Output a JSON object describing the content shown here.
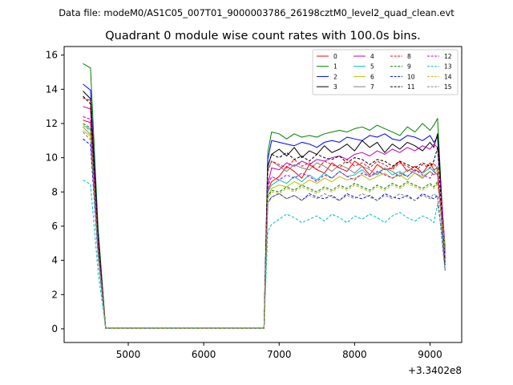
{
  "figure": {
    "suptitle": "Data file: modeM0/AS1C05_007T01_9000003786_26198cztM0_level2_quad_clean.evt"
  },
  "chart_data": {
    "type": "line",
    "title": "Quadrant 0 module wise count rates with 100.0s bins.",
    "xlabel": "",
    "ylabel": "",
    "x_offset_label": "+3.3402e8",
    "xlim": [
      4150,
      9420
    ],
    "ylim": [
      -0.8,
      16.5
    ],
    "x_ticks": [
      5000,
      6000,
      7000,
      8000,
      9000
    ],
    "y_ticks": [
      0,
      2,
      4,
      6,
      8,
      10,
      12,
      14,
      16
    ],
    "grid": false,
    "legend_placement": "top-right",
    "legend_columns": 4,
    "x": [
      4400,
      4500,
      4600,
      4700,
      4800,
      4900,
      5000,
      5100,
      5200,
      5300,
      5400,
      5500,
      5600,
      5700,
      5800,
      5900,
      6000,
      6100,
      6200,
      6300,
      6400,
      6500,
      6600,
      6700,
      6800,
      6850,
      6900,
      7000,
      7100,
      7200,
      7300,
      7400,
      7500,
      7600,
      7700,
      7800,
      7900,
      8000,
      8100,
      8200,
      8300,
      8400,
      8500,
      8600,
      8700,
      8800,
      8900,
      9000,
      9050,
      9100,
      9200
    ],
    "series": [
      {
        "name": "0",
        "color": "#ff0000",
        "dash": "solid",
        "start": 12.2,
        "valley": 0.03,
        "plateau": [
          8.1,
          8.6,
          8.9,
          9.5,
          9.2,
          8.8,
          9.6,
          9.3,
          9.1,
          9.7,
          9.4,
          9.2,
          9.8,
          9.5,
          9.0,
          9.6,
          9.3,
          9.4,
          9.8,
          9.2,
          9.5,
          9.1,
          9.7,
          9.3,
          9.4
        ]
      },
      {
        "name": "1",
        "color": "#008000",
        "dash": "solid",
        "start": 15.5,
        "valley": 0.05,
        "plateau": [
          10.3,
          11.5,
          11.4,
          11.1,
          11.4,
          11.2,
          11.3,
          11.2,
          11.4,
          11.5,
          11.6,
          11.5,
          11.7,
          11.8,
          11.6,
          11.9,
          11.7,
          11.5,
          11.3,
          11.8,
          11.5,
          12.0,
          11.6,
          11.9,
          12.3
        ]
      },
      {
        "name": "2",
        "color": "#0000ff",
        "dash": "solid",
        "start": 14.3,
        "valley": 0.04,
        "plateau": [
          9.9,
          11.0,
          10.9,
          10.8,
          10.7,
          10.9,
          10.8,
          10.6,
          10.9,
          11.0,
          10.9,
          11.2,
          11.1,
          11.0,
          11.3,
          11.2,
          11.4,
          11.1,
          11.0,
          11.3,
          11.2,
          11.0,
          11.3,
          10.9,
          11.2
        ]
      },
      {
        "name": "3",
        "color": "#000000",
        "dash": "solid",
        "start": 13.9,
        "valley": 0.03,
        "plateau": [
          9.5,
          10.2,
          10.5,
          10.1,
          10.6,
          10.0,
          10.4,
          10.2,
          10.7,
          10.3,
          10.5,
          10.8,
          10.4,
          11.0,
          10.6,
          10.9,
          10.3,
          10.8,
          10.5,
          10.9,
          10.7,
          10.4,
          10.9,
          10.6,
          11.4
        ]
      },
      {
        "name": "4",
        "color": "#bf00bf",
        "dash": "solid",
        "start": 13.0,
        "valley": 0.03,
        "plateau": [
          8.4,
          9.4,
          9.3,
          9.7,
          9.5,
          9.8,
          9.6,
          9.9,
          9.8,
          10.0,
          10.1,
          9.9,
          10.2,
          10.3,
          10.1,
          10.4,
          10.2,
          10.5,
          10.3,
          10.6,
          10.4,
          10.7,
          10.5,
          10.8,
          10.6
        ]
      },
      {
        "name": "5",
        "color": "#00bfbf",
        "dash": "solid",
        "start": 11.9,
        "valley": 0.03,
        "plateau": [
          8.0,
          8.4,
          8.7,
          8.5,
          8.9,
          8.6,
          9.0,
          8.7,
          9.1,
          8.8,
          9.2,
          8.9,
          9.0,
          9.3,
          8.9,
          9.1,
          9.4,
          9.0,
          9.2,
          8.9,
          9.3,
          9.1,
          9.4,
          9.2,
          9.5
        ]
      },
      {
        "name": "6",
        "color": "#bfbf00",
        "dash": "solid",
        "start": 11.6,
        "valley": 0.03,
        "plateau": [
          7.8,
          8.2,
          8.4,
          8.3,
          8.6,
          8.4,
          8.7,
          8.5,
          8.8,
          8.6,
          8.9,
          8.7,
          8.8,
          9.0,
          8.7,
          8.9,
          9.1,
          8.8,
          9.0,
          8.7,
          9.1,
          8.9,
          9.2,
          9.0,
          9.3
        ]
      },
      {
        "name": "7",
        "color": "#808080",
        "dash": "solid",
        "start": 11.8,
        "valley": 0.03,
        "plateau": [
          9.3,
          9.8,
          9.5,
          9.2,
          9.6,
          9.4,
          9.3,
          9.7,
          9.5,
          9.2,
          9.6,
          9.4,
          9.1,
          9.5,
          9.3,
          9.0,
          9.4,
          9.2,
          8.9,
          9.3,
          9.1,
          8.8,
          9.2,
          9.0,
          9.1
        ]
      },
      {
        "name": "8",
        "color": "#ff0000",
        "dash": "dashed",
        "start": 13.5,
        "valley": 0.03,
        "plateau": [
          9.2,
          9.8,
          9.6,
          9.4,
          9.9,
          9.5,
          9.7,
          9.3,
          9.8,
          9.6,
          9.4,
          9.9,
          9.5,
          9.7,
          9.4,
          9.8,
          9.6,
          9.3,
          9.7,
          9.5,
          9.2,
          9.6,
          9.4,
          9.7,
          9.3
        ]
      },
      {
        "name": "9",
        "color": "#008000",
        "dash": "dashed",
        "start": 12.0,
        "valley": 0.03,
        "plateau": [
          7.7,
          8.1,
          8.0,
          8.3,
          8.1,
          8.4,
          8.2,
          8.0,
          8.3,
          8.1,
          8.4,
          8.2,
          8.5,
          8.3,
          8.1,
          8.4,
          8.2,
          8.5,
          8.3,
          8.6,
          8.4,
          8.2,
          8.5,
          8.3,
          8.6
        ]
      },
      {
        "name": "10",
        "color": "#0000ff",
        "dash": "dashed",
        "start": 11.1,
        "valley": 0.03,
        "plateau": [
          7.4,
          7.7,
          7.9,
          7.6,
          7.8,
          7.5,
          7.9,
          7.7,
          7.6,
          7.8,
          7.5,
          7.9,
          7.7,
          7.6,
          7.8,
          7.5,
          7.9,
          7.7,
          7.6,
          7.8,
          7.5,
          7.9,
          7.7,
          7.6,
          7.8
        ]
      },
      {
        "name": "11",
        "color": "#000000",
        "dash": "dashed",
        "start": 13.6,
        "valley": 0.03,
        "plateau": [
          9.5,
          10.2,
          10.0,
          10.3,
          9.9,
          10.1,
          9.8,
          10.2,
          10.0,
          9.9,
          10.1,
          9.7,
          10.0,
          9.9,
          9.6,
          9.9,
          9.8,
          9.5,
          9.8,
          9.6,
          9.4,
          9.7,
          9.5,
          9.8,
          10.6
        ]
      },
      {
        "name": "12",
        "color": "#bf00bf",
        "dash": "dashed",
        "start": 12.4,
        "valley": 0.03,
        "plateau": [
          8.3,
          8.9,
          8.7,
          9.0,
          8.8,
          9.1,
          8.9,
          8.6,
          9.0,
          8.8,
          9.2,
          8.9,
          8.7,
          9.1,
          8.9,
          9.2,
          9.0,
          8.8,
          9.1,
          8.9,
          9.3,
          9.0,
          8.8,
          9.2,
          9.0
        ]
      },
      {
        "name": "13",
        "color": "#00bfbf",
        "dash": "dashed",
        "start": 8.7,
        "valley": 0.02,
        "plateau": [
          5.7,
          6.1,
          6.4,
          6.7,
          6.5,
          6.2,
          6.4,
          6.6,
          6.3,
          6.7,
          6.5,
          6.2,
          6.6,
          6.4,
          6.7,
          6.5,
          6.2,
          6.6,
          6.8,
          6.5,
          6.3,
          6.6,
          6.4,
          6.2,
          7.3
        ]
      },
      {
        "name": "14",
        "color": "#bfbf00",
        "dash": "dashed",
        "start": 11.9,
        "valley": 0.03,
        "plateau": [
          7.6,
          8.0,
          7.9,
          8.2,
          8.0,
          8.3,
          8.1,
          7.9,
          8.2,
          8.0,
          8.3,
          8.1,
          8.4,
          8.2,
          8.0,
          8.3,
          8.1,
          8.4,
          8.2,
          8.5,
          8.3,
          8.1,
          8.4,
          8.2,
          8.5
        ]
      },
      {
        "name": "15",
        "color": "#808080",
        "dash": "dashed",
        "start": 11.5,
        "valley": 0.03,
        "plateau": [
          7.3,
          7.7,
          7.9,
          7.6,
          7.8,
          7.5,
          7.8,
          7.6,
          7.9,
          7.7,
          7.5,
          7.8,
          7.6,
          7.9,
          7.7,
          7.5,
          7.8,
          7.6,
          7.9,
          7.7,
          7.5,
          7.8,
          7.6,
          7.9,
          7.7
        ]
      }
    ]
  }
}
